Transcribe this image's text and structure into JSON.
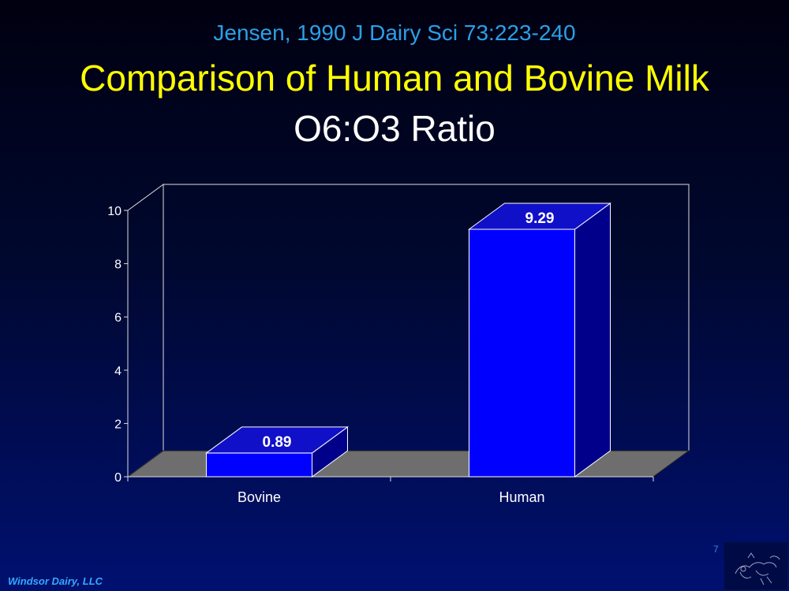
{
  "header": {
    "citation": "Jensen, 1990 J Dairy Sci 73:223-240",
    "title": "Comparison of Human and Bovine Milk",
    "subtitle": "O6:O3 Ratio"
  },
  "chart_data": {
    "type": "bar",
    "categories": [
      "Bovine",
      "Human"
    ],
    "values": [
      0.89,
      9.29
    ],
    "data_labels": [
      "0.89",
      "9.29"
    ],
    "ylim": [
      0,
      10
    ],
    "yticks": [
      "0",
      "2",
      "4",
      "6",
      "8",
      "10"
    ],
    "xlabel": "",
    "ylabel": "",
    "grid": false,
    "legend": "none",
    "bar_color": "#0000ff",
    "floor_color": "#6e6e6e"
  },
  "footer": {
    "company": "Windsor Dairy, LLC",
    "page_number": "7"
  },
  "logo": {
    "icon": "cow-sketch-icon"
  }
}
